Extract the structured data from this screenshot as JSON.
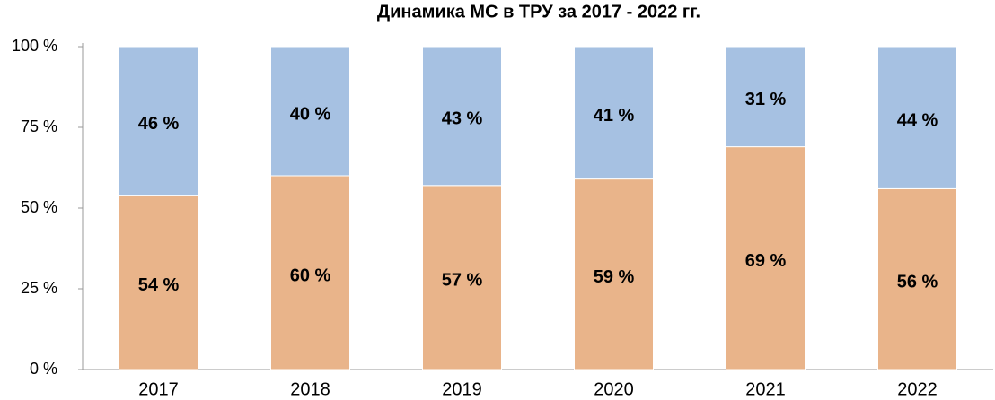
{
  "chart_data": {
    "type": "stacked-bar",
    "title": "Динамика МС в ТРУ за 2017 - 2022 гг.",
    "categories": [
      "2017",
      "2018",
      "2019",
      "2020",
      "2021",
      "2022"
    ],
    "series": [
      {
        "color": "#e9b48a",
        "values": [
          54,
          60,
          57,
          59,
          69,
          56
        ],
        "value_labels": [
          "54 %",
          "60 %",
          "57 %",
          "59 %",
          "69 %",
          "56 %"
        ]
      },
      {
        "color": "#a6c1e2",
        "values": [
          46,
          40,
          43,
          41,
          31,
          44
        ],
        "value_labels": [
          "46 %",
          "40 %",
          "43 %",
          "41 %",
          "31 %",
          "44 %"
        ]
      }
    ],
    "ylim": [
      0,
      100
    ],
    "yticks": [
      {
        "value": 0,
        "label": "0 %"
      },
      {
        "value": 25,
        "label": "25 %"
      },
      {
        "value": 50,
        "label": "50 %"
      },
      {
        "value": 75,
        "label": "75 %"
      },
      {
        "value": 100,
        "label": "100 %"
      }
    ]
  }
}
